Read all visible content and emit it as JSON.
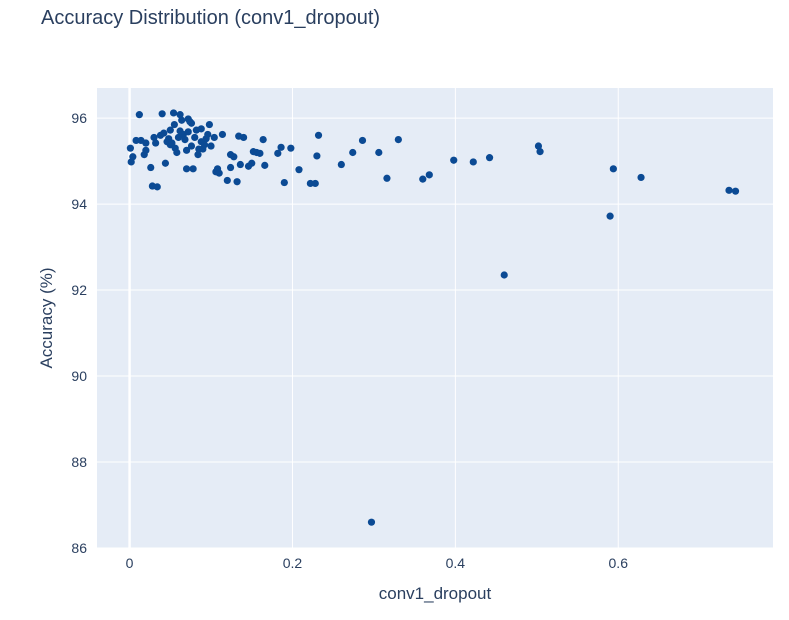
{
  "chart_data": {
    "type": "scatter",
    "title": "Accuracy Distribution (conv1_dropout)",
    "xlabel": "conv1_dropout",
    "ylabel": "Accuracy (%)",
    "xlim": [
      -0.04,
      0.79
    ],
    "ylim": [
      86,
      96.7
    ],
    "x_ticks": [
      0,
      0.2,
      0.4,
      0.6
    ],
    "x_tick_labels": [
      "0",
      "0.2",
      "0.4",
      "0.6"
    ],
    "y_ticks": [
      86,
      88,
      90,
      92,
      94,
      96
    ],
    "y_tick_labels": [
      "86",
      "88",
      "90",
      "92",
      "94",
      "96"
    ],
    "grid": true,
    "colors": {
      "background": "#e5ecf6",
      "marker": "#0b4a94",
      "grid": "#ffffff",
      "zeroline": "#ffffff"
    },
    "series": [
      {
        "points": [
          [
            0.001,
            95.3
          ],
          [
            0.002,
            94.98
          ],
          [
            0.004,
            95.1
          ],
          [
            0.008,
            95.48
          ],
          [
            0.012,
            96.08
          ],
          [
            0.014,
            95.48
          ],
          [
            0.018,
            95.15
          ],
          [
            0.02,
            95.42
          ],
          [
            0.02,
            95.25
          ],
          [
            0.026,
            94.85
          ],
          [
            0.028,
            94.42
          ],
          [
            0.03,
            95.55
          ],
          [
            0.032,
            95.42
          ],
          [
            0.034,
            94.4
          ],
          [
            0.038,
            95.6
          ],
          [
            0.04,
            96.1
          ],
          [
            0.042,
            95.65
          ],
          [
            0.044,
            94.95
          ],
          [
            0.046,
            95.45
          ],
          [
            0.048,
            95.52
          ],
          [
            0.05,
            95.38
          ],
          [
            0.05,
            95.72
          ],
          [
            0.052,
            95.42
          ],
          [
            0.054,
            96.12
          ],
          [
            0.055,
            95.85
          ],
          [
            0.056,
            95.3
          ],
          [
            0.058,
            95.2
          ],
          [
            0.06,
            95.55
          ],
          [
            0.062,
            96.08
          ],
          [
            0.062,
            95.7
          ],
          [
            0.064,
            95.95
          ],
          [
            0.066,
            95.62
          ],
          [
            0.068,
            95.5
          ],
          [
            0.07,
            95.25
          ],
          [
            0.07,
            94.82
          ],
          [
            0.072,
            95.68
          ],
          [
            0.072,
            95.98
          ],
          [
            0.074,
            95.92
          ],
          [
            0.076,
            95.88
          ],
          [
            0.076,
            95.35
          ],
          [
            0.078,
            94.82
          ],
          [
            0.08,
            95.55
          ],
          [
            0.082,
            95.72
          ],
          [
            0.084,
            95.15
          ],
          [
            0.085,
            95.28
          ],
          [
            0.088,
            95.75
          ],
          [
            0.088,
            95.45
          ],
          [
            0.09,
            95.28
          ],
          [
            0.092,
            95.38
          ],
          [
            0.094,
            95.52
          ],
          [
            0.096,
            95.62
          ],
          [
            0.098,
            95.85
          ],
          [
            0.1,
            95.35
          ],
          [
            0.104,
            95.55
          ],
          [
            0.106,
            94.75
          ],
          [
            0.108,
            94.82
          ],
          [
            0.11,
            94.72
          ],
          [
            0.114,
            95.62
          ],
          [
            0.12,
            94.55
          ],
          [
            0.124,
            95.15
          ],
          [
            0.124,
            94.85
          ],
          [
            0.128,
            95.1
          ],
          [
            0.132,
            94.52
          ],
          [
            0.134,
            95.58
          ],
          [
            0.136,
            94.92
          ],
          [
            0.14,
            95.55
          ],
          [
            0.146,
            94.88
          ],
          [
            0.15,
            94.95
          ],
          [
            0.152,
            95.22
          ],
          [
            0.156,
            95.2
          ],
          [
            0.16,
            95.18
          ],
          [
            0.164,
            95.5
          ],
          [
            0.166,
            94.9
          ],
          [
            0.182,
            95.18
          ],
          [
            0.186,
            95.32
          ],
          [
            0.19,
            94.5
          ],
          [
            0.198,
            95.3
          ],
          [
            0.208,
            94.8
          ],
          [
            0.222,
            94.48
          ],
          [
            0.228,
            94.48
          ],
          [
            0.23,
            95.12
          ],
          [
            0.232,
            95.6
          ],
          [
            0.26,
            94.92
          ],
          [
            0.274,
            95.2
          ],
          [
            0.286,
            95.48
          ],
          [
            0.297,
            86.6
          ],
          [
            0.306,
            95.2
          ],
          [
            0.316,
            94.6
          ],
          [
            0.33,
            95.5
          ],
          [
            0.36,
            94.58
          ],
          [
            0.368,
            94.68
          ],
          [
            0.398,
            95.02
          ],
          [
            0.422,
            94.98
          ],
          [
            0.442,
            95.08
          ],
          [
            0.46,
            92.35
          ],
          [
            0.502,
            95.35
          ],
          [
            0.504,
            95.22
          ],
          [
            0.59,
            93.72
          ],
          [
            0.594,
            94.82
          ],
          [
            0.628,
            94.62
          ],
          [
            0.736,
            94.32
          ],
          [
            0.744,
            94.3
          ]
        ]
      }
    ]
  }
}
